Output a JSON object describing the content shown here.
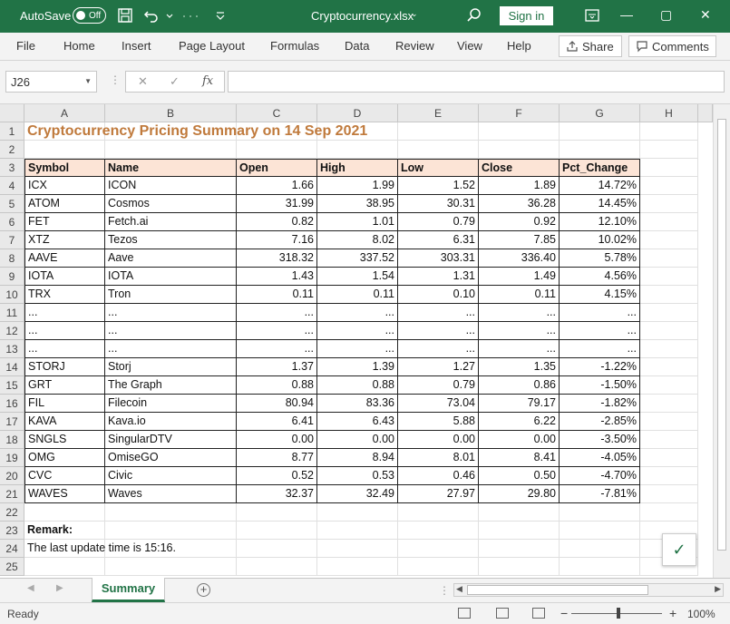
{
  "window": {
    "autosave_label": "AutoSave",
    "autosave_state": "Off",
    "filename": "Cryptocurrency.xlsx",
    "caret": "⌄",
    "signin_label": "Sign in",
    "minimize": "—",
    "restore": "▢",
    "close": "✕"
  },
  "ribbon": {
    "tabs": [
      "File",
      "Home",
      "Insert",
      "Page Layout",
      "Formulas",
      "Data",
      "Review",
      "View",
      "Help"
    ],
    "share_label": "Share",
    "comments_label": "Comments"
  },
  "formula_bar": {
    "name_box": "J26",
    "cancel": "✕",
    "enter": "✓",
    "fx": "fx",
    "value": ""
  },
  "columns": [
    "A",
    "B",
    "C",
    "D",
    "E",
    "F",
    "G",
    "H"
  ],
  "rows": [
    "1",
    "2",
    "3",
    "4",
    "5",
    "6",
    "7",
    "8",
    "9",
    "10",
    "11",
    "12",
    "13",
    "14",
    "15",
    "16",
    "17",
    "18",
    "19",
    "20",
    "21",
    "22",
    "23",
    "24",
    "25"
  ],
  "sheet": {
    "title": "Cryptocurrency Pricing Summary on 14 Sep 2021",
    "headers": [
      "Symbol",
      "Name",
      "Open",
      "High",
      "Low",
      "Close",
      "Pct_Change"
    ],
    "table": [
      [
        "ICX",
        "ICON",
        "1.66",
        "1.99",
        "1.52",
        "1.89",
        "14.72%"
      ],
      [
        "ATOM",
        "Cosmos",
        "31.99",
        "38.95",
        "30.31",
        "36.28",
        "14.45%"
      ],
      [
        "FET",
        "Fetch.ai",
        "0.82",
        "1.01",
        "0.79",
        "0.92",
        "12.10%"
      ],
      [
        "XTZ",
        "Tezos",
        "7.16",
        "8.02",
        "6.31",
        "7.85",
        "10.02%"
      ],
      [
        "AAVE",
        "Aave",
        "318.32",
        "337.52",
        "303.31",
        "336.40",
        "5.78%"
      ],
      [
        "IOTA",
        "IOTA",
        "1.43",
        "1.54",
        "1.31",
        "1.49",
        "4.56%"
      ],
      [
        "TRX",
        "Tron",
        "0.11",
        "0.11",
        "0.10",
        "0.11",
        "4.15%"
      ],
      [
        "...",
        "...",
        "...",
        "...",
        "...",
        "...",
        "..."
      ],
      [
        "...",
        "...",
        "...",
        "...",
        "...",
        "...",
        "..."
      ],
      [
        "...",
        "...",
        "...",
        "...",
        "...",
        "...",
        "..."
      ],
      [
        "STORJ",
        "Storj",
        "1.37",
        "1.39",
        "1.27",
        "1.35",
        "-1.22%"
      ],
      [
        "GRT",
        "The Graph",
        "0.88",
        "0.88",
        "0.79",
        "0.86",
        "-1.50%"
      ],
      [
        "FIL",
        "Filecoin",
        "80.94",
        "83.36",
        "73.04",
        "79.17",
        "-1.82%"
      ],
      [
        "KAVA",
        "Kava.io",
        "6.41",
        "6.43",
        "5.88",
        "6.22",
        "-2.85%"
      ],
      [
        "SNGLS",
        "SingularDTV",
        "0.00",
        "0.00",
        "0.00",
        "0.00",
        "-3.50%"
      ],
      [
        "OMG",
        "OmiseGO",
        "8.77",
        "8.94",
        "8.01",
        "8.41",
        "-4.05%"
      ],
      [
        "CVC",
        "Civic",
        "0.52",
        "0.53",
        "0.46",
        "0.50",
        "-4.70%"
      ],
      [
        "WAVES",
        "Waves",
        "32.37",
        "32.49",
        "27.97",
        "29.80",
        "-7.81%"
      ]
    ],
    "remark_label": "Remark:",
    "remark_text": "The last update time is 15:16."
  },
  "tabs_bar": {
    "sheet_name": "Summary",
    "add_symbol": "+"
  },
  "status": {
    "ready": "Ready",
    "zoom": "100%",
    "zoom_minus": "−",
    "zoom_plus": "+"
  },
  "colors": {
    "accent": "#217346",
    "header_fill": "#fce4d6",
    "title_color": "#c07a3c"
  }
}
